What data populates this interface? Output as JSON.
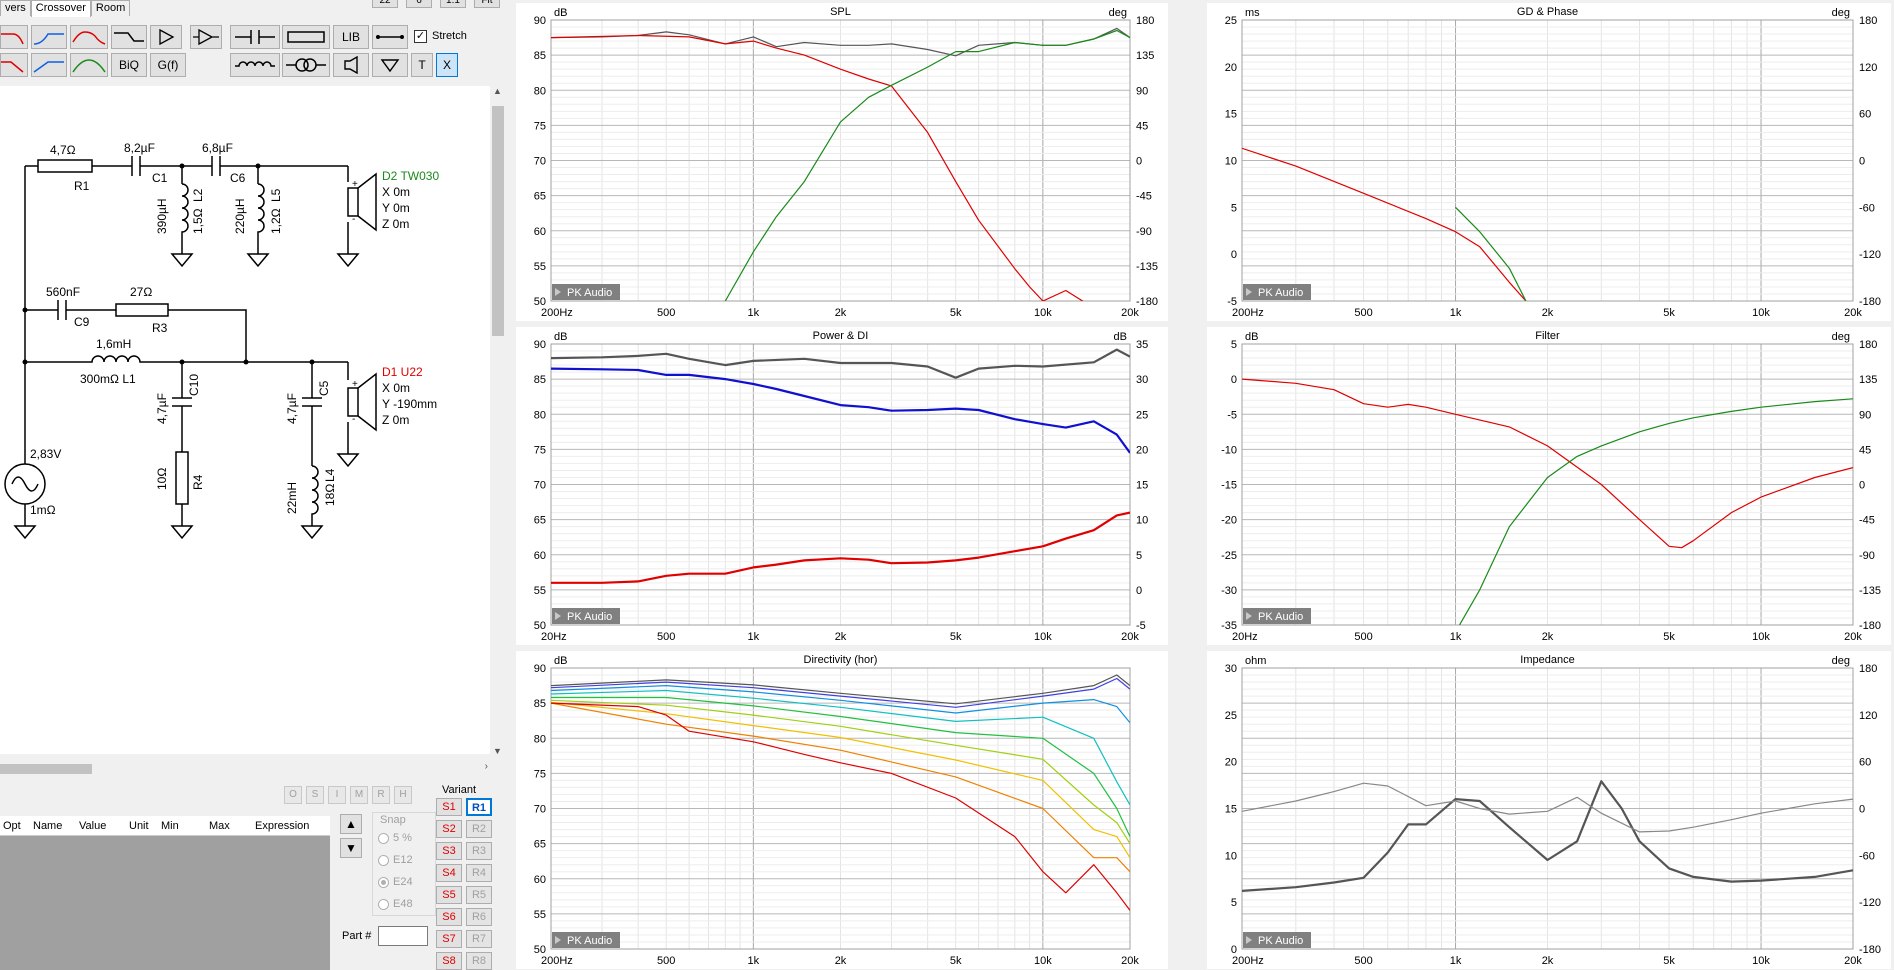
{
  "tabs": [
    "vers",
    "Crossover",
    "Room"
  ],
  "topbuttons": [
    "22",
    "6",
    "1:1",
    "Fit"
  ],
  "toolbar": {
    "biq": "BiQ",
    "gf": "G(f)",
    "lib": "LIB",
    "t": "T",
    "x": "X",
    "stretch": "Stretch"
  },
  "schematic": {
    "r1_value": "4,7Ω",
    "r1": "R1",
    "c1_value": "8,2µF",
    "c1": "C1",
    "c6_value": "6,8µF",
    "c6": "C6",
    "l2_value": "390µH",
    "l2": "L2",
    "l2_r": "1,5Ω",
    "l5_value": "220µH",
    "l5": "L5",
    "l5_r": "1,2Ω",
    "d2_name": "D2 TW030",
    "d2_x": "X  0m",
    "d2_y": "Y  0m",
    "d2_z": "Z  0m",
    "c9_value": "560nF",
    "c9": "C9",
    "r3_value": "27Ω",
    "r3": "R3",
    "l1_value": "1,6mH",
    "l1": "300mΩ  L1",
    "c10_value": "4,7µF",
    "c10": "C10",
    "r4_value": "10Ω",
    "r4": "R4",
    "c5_value": "4,7µF",
    "c5": "C5",
    "l4_value": "22mH",
    "l4": "L4",
    "l4_r": "18Ω",
    "d1_name": "D1 U22",
    "d1_x": "X  0m",
    "d1_y": "Y  -190mm",
    "d1_z": "Z  0m",
    "src_value": "2,83V",
    "src_r": "1mΩ"
  },
  "colors": {
    "green": "#1a8a1a",
    "red": "#e00000",
    "grey": "#555555",
    "blue": "#1010d0"
  },
  "bottom": {
    "osimrh": [
      "O",
      "S",
      "I",
      "M",
      "R",
      "H"
    ],
    "columns": [
      "Opt",
      "Name",
      "Value",
      "Unit",
      "Min",
      "Max",
      "Expression"
    ],
    "snap_label": "Snap",
    "snap_options": [
      "5 %",
      "E12",
      "E24",
      "E48"
    ],
    "part_label": "Part #",
    "variant_label": "Variant",
    "s_buttons": [
      "S1",
      "S2",
      "S3",
      "S4",
      "S5",
      "S6",
      "S7",
      "S8"
    ],
    "r_buttons": [
      "R1",
      "R2",
      "R3",
      "R4",
      "R5",
      "R6",
      "R7",
      "R8"
    ]
  },
  "charts": [
    {
      "id": "spl",
      "title": "SPL",
      "left_unit": "dB",
      "right_unit": "deg",
      "watermark": "PK Audio",
      "y_ticks": [
        "90",
        "85",
        "80",
        "75",
        "70",
        "65",
        "60",
        "55",
        "50"
      ],
      "r_ticks": [
        "180",
        "135",
        "90",
        "45",
        "0",
        "-45",
        "-90",
        "-135",
        "-180"
      ],
      "x_ticks": [
        "200Hz",
        "500",
        "1k",
        "2k",
        "5k",
        "10k",
        "20k"
      ]
    },
    {
      "id": "gd",
      "title": "GD & Phase",
      "left_unit": "ms",
      "right_unit": "deg",
      "watermark": "PK Audio",
      "y_ticks": [
        "25",
        "20",
        "15",
        "10",
        "5",
        "0",
        "-5"
      ],
      "r_ticks": [
        "180",
        "120",
        "60",
        "0",
        "-60",
        "-120",
        "-180"
      ],
      "x_ticks": [
        "200Hz",
        "500",
        "1k",
        "2k",
        "5k",
        "10k",
        "20k"
      ]
    },
    {
      "id": "pdi",
      "title": "Power & DI",
      "left_unit": "dB",
      "right_unit": "dB",
      "watermark": "PK Audio",
      "y_ticks": [
        "90",
        "85",
        "80",
        "75",
        "70",
        "65",
        "60",
        "55",
        "50"
      ],
      "r_ticks": [
        "35",
        "30",
        "25",
        "20",
        "15",
        "10",
        "5",
        "0",
        "-5"
      ],
      "x_ticks": [
        "20Hz",
        "500",
        "1k",
        "2k",
        "5k",
        "10k",
        "20k"
      ]
    },
    {
      "id": "flt",
      "title": "Filter",
      "left_unit": "dB",
      "right_unit": "deg",
      "watermark": "PK Audio",
      "y_ticks": [
        "5",
        "0",
        "-5",
        "-10",
        "-15",
        "-20",
        "-25",
        "-30",
        "-35"
      ],
      "r_ticks": [
        "180",
        "135",
        "90",
        "45",
        "0",
        "-45",
        "-90",
        "-135",
        "-180"
      ],
      "x_ticks": [
        "20Hz",
        "500",
        "1k",
        "2k",
        "5k",
        "10k",
        "20k"
      ]
    },
    {
      "id": "dir",
      "title": "Directivity (hor)",
      "left_unit": "dB",
      "right_unit": "",
      "watermark": "PK Audio",
      "y_ticks": [
        "90",
        "85",
        "80",
        "75",
        "70",
        "65",
        "60",
        "55",
        "50"
      ],
      "r_ticks": [],
      "x_ticks": [
        "200Hz",
        "500",
        "1k",
        "2k",
        "5k",
        "10k",
        "20k"
      ]
    },
    {
      "id": "imp",
      "title": "Impedance",
      "left_unit": "ohm",
      "right_unit": "deg",
      "watermark": "PK Audio",
      "y_ticks": [
        "30",
        "25",
        "20",
        "15",
        "10",
        "5",
        "0"
      ],
      "r_ticks": [
        "180",
        "120",
        "60",
        "0",
        "-60",
        "-120",
        "-180"
      ],
      "x_ticks": [
        "200Hz",
        "500",
        "1k",
        "2k",
        "5k",
        "10k",
        "20k"
      ]
    }
  ],
  "chart_data": [
    {
      "type": "line",
      "title": "SPL",
      "x_scale": "log",
      "xlim": [
        200,
        20000
      ],
      "ylim": [
        50,
        90
      ],
      "y2lim": [
        -180,
        180
      ],
      "grid": true,
      "series": [
        {
          "color": "#555555",
          "x": [
            200,
            300,
            400,
            500,
            600,
            800,
            1000,
            1200,
            1500,
            2000,
            2500,
            3000,
            4000,
            5000,
            6000,
            8000,
            10000,
            12000,
            15000,
            18000,
            20000
          ],
          "y": [
            87.5,
            87.6,
            87.8,
            88.3,
            87.9,
            86.6,
            87.6,
            86.2,
            86.8,
            86.4,
            86.4,
            86.6,
            85.8,
            84.9,
            86.4,
            86.8,
            86.4,
            86.4,
            87.3,
            88.8,
            87.5
          ]
        },
        {
          "color": "#e00000",
          "x": [
            200,
            400,
            600,
            800,
            1000,
            1200,
            1500,
            2000,
            2500,
            3000,
            4000,
            5000,
            6000,
            8000,
            9000,
            10000,
            12000,
            15000,
            20000
          ],
          "y": [
            87.5,
            87.8,
            87.6,
            86.6,
            87,
            86,
            85,
            83,
            81.6,
            80.6,
            74,
            67,
            61.5,
            54.6,
            52,
            50,
            51.5,
            49,
            48
          ]
        },
        {
          "color": "#1a8a1a",
          "x": [
            800,
            1000,
            1200,
            1500,
            2000,
            2500,
            3000,
            4000,
            5000,
            6000,
            8000,
            10000,
            12000,
            15000,
            18000,
            20000
          ],
          "y": [
            50,
            57,
            62,
            67,
            75.5,
            79,
            80.7,
            83.3,
            85.5,
            85.5,
            86.8,
            86.4,
            86.4,
            87.3,
            88.5,
            87.5
          ]
        }
      ]
    },
    {
      "type": "line",
      "title": "GD & Phase",
      "x_scale": "log",
      "xlim": [
        200,
        20000
      ],
      "ylim": [
        -5,
        25
      ],
      "y2lim": [
        -180,
        180
      ],
      "grid": true,
      "series": [
        {
          "color": "#e00000",
          "x": [
            200,
            300,
            500,
            800,
            1000,
            1200,
            1500,
            1700
          ],
          "y": [
            11.3,
            9.4,
            6.5,
            3.8,
            2.4,
            0.8,
            -3,
            -5
          ]
        },
        {
          "color": "#1a8a1a",
          "x": [
            1000,
            1200,
            1500,
            1700
          ],
          "y": [
            5,
            2.4,
            -1.5,
            -5
          ]
        }
      ]
    },
    {
      "type": "line",
      "title": "Power & DI",
      "x_scale": "log",
      "xlim": [
        200,
        20000
      ],
      "ylim": [
        50,
        90
      ],
      "y2lim": [
        -5,
        35
      ],
      "grid": true,
      "series": [
        {
          "color": "#555555",
          "x": [
            200,
            300,
            400,
            500,
            600,
            800,
            1000,
            1500,
            2000,
            3000,
            4000,
            5000,
            6000,
            8000,
            10000,
            15000,
            18000,
            20000
          ],
          "y": [
            88,
            88.1,
            88.3,
            88.6,
            87.9,
            87,
            87.6,
            87.9,
            87.3,
            87.3,
            86.8,
            85.2,
            86.5,
            86.9,
            86.8,
            87.4,
            89.2,
            88.2
          ]
        },
        {
          "color": "#1010d0",
          "x": [
            200,
            300,
            400,
            500,
            600,
            800,
            1000,
            1200,
            1500,
            2000,
            2500,
            3000,
            4000,
            5000,
            6000,
            8000,
            10000,
            12000,
            15000,
            18000,
            20000
          ],
          "y": [
            86.5,
            86.4,
            86.3,
            85.6,
            85.6,
            85,
            84.3,
            83.6,
            82.6,
            81.3,
            81,
            80.5,
            80.6,
            80.8,
            80.6,
            79.3,
            78.6,
            78.1,
            79,
            77.1,
            74.5
          ]
        },
        {
          "color": "#e00000",
          "x": [
            200,
            300,
            400,
            500,
            600,
            800,
            1000,
            1200,
            1500,
            2000,
            2500,
            3000,
            4000,
            5000,
            6000,
            8000,
            10000,
            12000,
            15000,
            18000,
            20000
          ],
          "y": [
            56,
            56,
            56.2,
            57,
            57.3,
            57.3,
            58.2,
            58.6,
            59.2,
            59.5,
            59.3,
            58.8,
            58.9,
            59.2,
            59.6,
            60.5,
            61.2,
            62.3,
            63.5,
            65.6,
            66
          ]
        }
      ]
    },
    {
      "type": "line",
      "title": "Filter",
      "x_scale": "log",
      "xlim": [
        200,
        20000
      ],
      "ylim": [
        -35,
        5
      ],
      "y2lim": [
        -180,
        180
      ],
      "grid": true,
      "series": [
        {
          "color": "#e00000",
          "x": [
            200,
            300,
            400,
            500,
            600,
            700,
            800,
            1000,
            1500,
            2000,
            3000,
            4000,
            5000,
            5500,
            6000,
            8000,
            10000,
            15000,
            20000
          ],
          "y": [
            0,
            -0.6,
            -1.5,
            -3.5,
            -4,
            -3.6,
            -4,
            -5,
            -6.8,
            -9.5,
            -15,
            -20,
            -23.8,
            -24,
            -23,
            -19,
            -16.8,
            -14,
            -12.6
          ]
        },
        {
          "color": "#1a8a1a",
          "x": [
            1000,
            1200,
            1500,
            2000,
            2500,
            3000,
            4000,
            5000,
            6000,
            8000,
            10000,
            15000,
            20000
          ],
          "y": [
            -36,
            -30,
            -21,
            -14,
            -11,
            -9.5,
            -7.5,
            -6.3,
            -5.5,
            -4.6,
            -4,
            -3.2,
            -2.8
          ]
        }
      ]
    },
    {
      "type": "line",
      "title": "Directivity (hor)",
      "x_scale": "log",
      "xlim": [
        200,
        20000
      ],
      "ylim": [
        50,
        90
      ],
      "grid": true,
      "series": [
        {
          "color": "#555555",
          "x": [
            200,
            500,
            1000,
            2000,
            5000,
            10000,
            15000,
            18000,
            20000
          ],
          "y": [
            87.5,
            88.3,
            87.6,
            86.4,
            84.9,
            86.4,
            87.5,
            89,
            87.5
          ]
        },
        {
          "color": "#4040e0",
          "x": [
            200,
            500,
            1000,
            2000,
            5000,
            10000,
            15000,
            18000,
            20000
          ],
          "y": [
            87.2,
            88,
            87.2,
            86,
            84.4,
            86,
            87,
            88.5,
            87
          ]
        },
        {
          "color": "#1090e0",
          "x": [
            200,
            500,
            1000,
            2000,
            5000,
            10000,
            15000,
            18000,
            20000
          ],
          "y": [
            86.8,
            87.5,
            86.6,
            85.4,
            83.6,
            85,
            85.5,
            84.5,
            82.2
          ]
        },
        {
          "color": "#10c0c0",
          "x": [
            200,
            500,
            1000,
            2000,
            5000,
            10000,
            15000,
            18000,
            20000
          ],
          "y": [
            86.3,
            86.8,
            85.7,
            84.4,
            82.4,
            83,
            80,
            73.8,
            70.5
          ]
        },
        {
          "color": "#20c040",
          "x": [
            200,
            500,
            1000,
            2000,
            5000,
            10000,
            15000,
            18000,
            20000
          ],
          "y": [
            85.8,
            85.8,
            84.6,
            83.1,
            80.8,
            80,
            75,
            70,
            66
          ]
        },
        {
          "color": "#a0d010",
          "x": [
            200,
            500,
            1000,
            2000,
            5000,
            10000,
            15000,
            18000,
            20000
          ],
          "y": [
            85.4,
            84.7,
            83.3,
            81.7,
            79,
            77,
            70.5,
            68,
            65
          ]
        },
        {
          "color": "#f0c000",
          "x": [
            200,
            500,
            1000,
            2000,
            5000,
            10000,
            15000,
            18000,
            20000
          ],
          "y": [
            85.1,
            83.5,
            81.8,
            80.1,
            76.9,
            74,
            67,
            66,
            63
          ]
        },
        {
          "color": "#f08000",
          "x": [
            200,
            500,
            1000,
            2000,
            5000,
            10000,
            15000,
            18000,
            20000
          ],
          "y": [
            85,
            82,
            80.3,
            78.3,
            74.5,
            70,
            63,
            63,
            61
          ]
        },
        {
          "color": "#e00000",
          "x": [
            200,
            400,
            500,
            600,
            1000,
            1500,
            2000,
            3000,
            5000,
            8000,
            10000,
            12000,
            15000,
            18000,
            20000
          ],
          "y": [
            85,
            84.5,
            83.3,
            81,
            79.5,
            77.7,
            76.5,
            75,
            71.5,
            66,
            61,
            58,
            62,
            58,
            55.5
          ]
        }
      ]
    },
    {
      "type": "line",
      "title": "Impedance",
      "x_scale": "log",
      "xlim": [
        200,
        20000
      ],
      "ylim": [
        0,
        30
      ],
      "y2lim": [
        -180,
        180
      ],
      "grid": true,
      "series": [
        {
          "color": "#555555",
          "x": [
            200,
            300,
            400,
            500,
            600,
            700,
            800,
            1000,
            1200,
            1500,
            2000,
            2500,
            3000,
            3500,
            4000,
            5000,
            6000,
            8000,
            10000,
            15000,
            20000
          ],
          "y": [
            6.2,
            6.6,
            7.1,
            7.6,
            10.3,
            13.3,
            13.3,
            16,
            15.8,
            13,
            9.5,
            11.5,
            17.9,
            15,
            11.5,
            8.6,
            7.7,
            7.2,
            7.3,
            7.7,
            8.4
          ]
        },
        {
          "color": "#888888",
          "x": [
            200,
            300,
            400,
            500,
            600,
            800,
            1000,
            1200,
            1500,
            2000,
            2500,
            3000,
            4000,
            5000,
            6000,
            8000,
            10000,
            15000,
            20000
          ],
          "y": [
            14.7,
            15.8,
            16.8,
            17.7,
            17.4,
            15.3,
            15.8,
            15,
            14.4,
            14.7,
            16.2,
            14.5,
            12.5,
            12.6,
            13,
            13.8,
            14.5,
            15.5,
            16
          ]
        }
      ]
    }
  ]
}
